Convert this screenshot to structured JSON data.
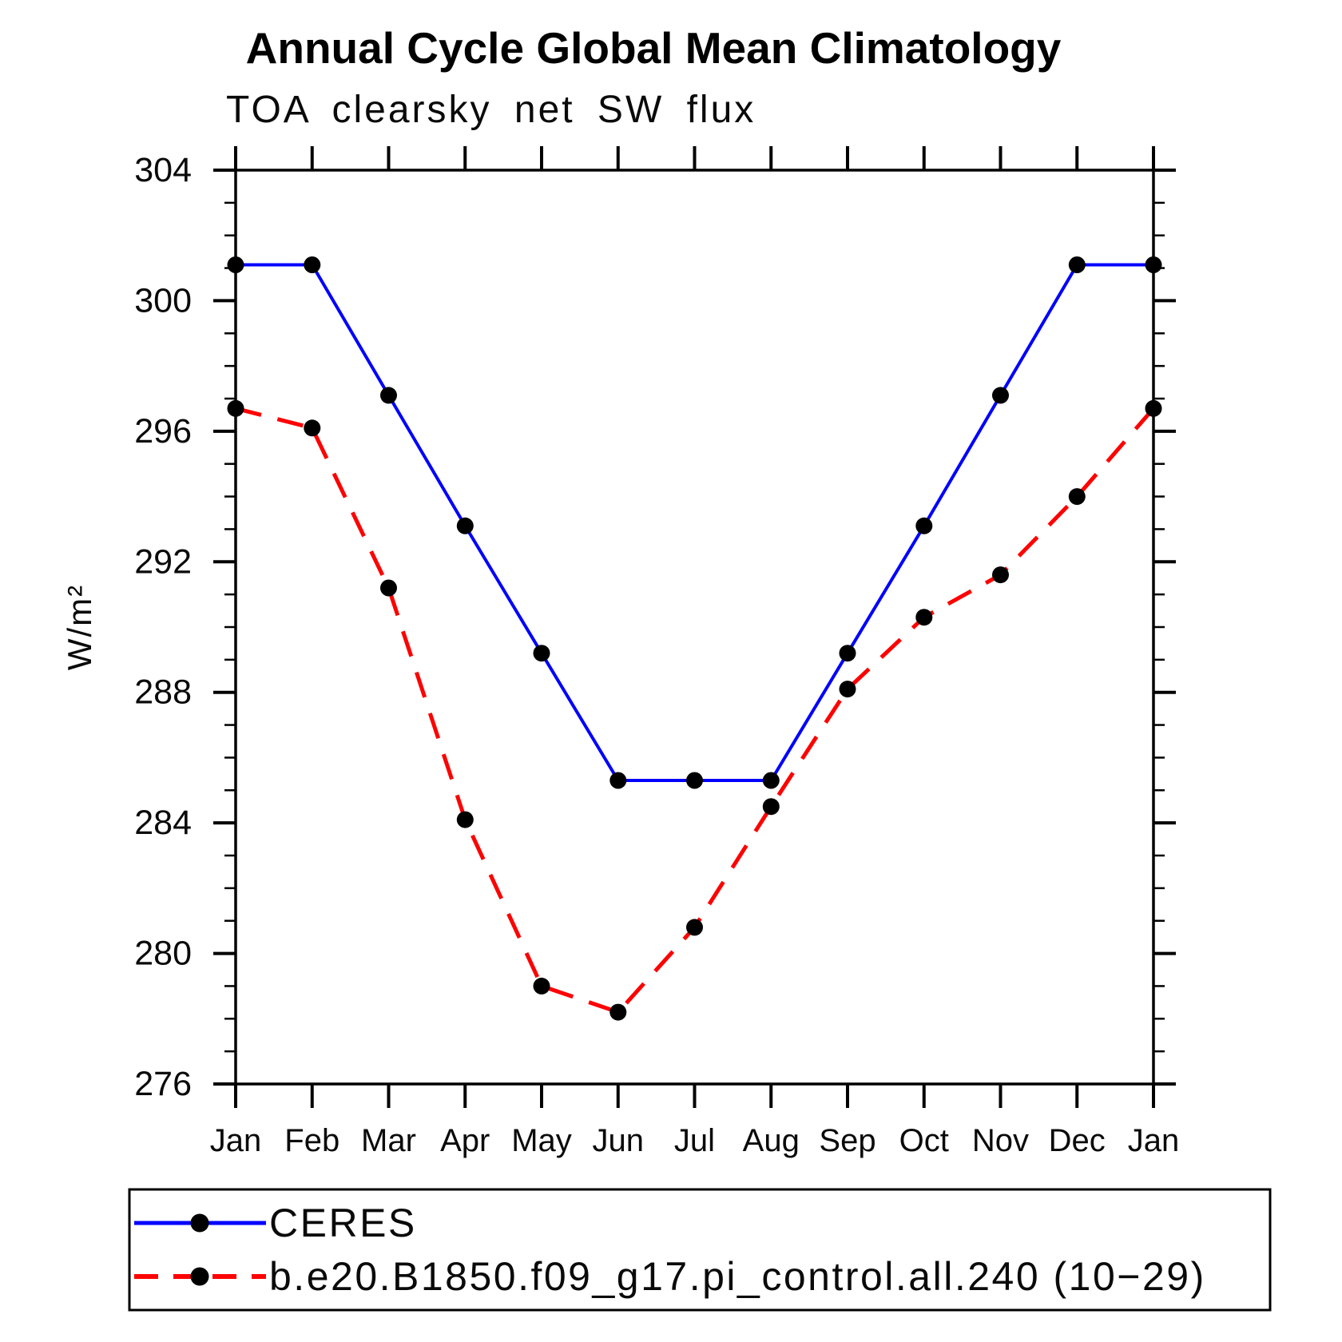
{
  "title": "Annual Cycle Global Mean Climatology",
  "subtitle": "TOA clearsky net SW flux",
  "ylabel": "W/m²",
  "chart_data": {
    "type": "line",
    "categories": [
      "Jan",
      "Feb",
      "Mar",
      "Apr",
      "May",
      "Jun",
      "Jul",
      "Aug",
      "Sep",
      "Oct",
      "Nov",
      "Dec",
      "Jan"
    ],
    "series": [
      {
        "name": "CERES",
        "color": "#0000ff",
        "line_style": "solid",
        "marker": "filled-circle",
        "marker_color": "#000000",
        "values": [
          301.1,
          301.1,
          297.1,
          293.1,
          289.2,
          285.3,
          285.3,
          285.3,
          289.2,
          293.1,
          297.1,
          301.1,
          301.1
        ]
      },
      {
        "name": "b.e20.B1850.f09_g17.pi_control.all.240 (10−29)",
        "color": "#ff0000",
        "line_style": "dashed",
        "marker": "filled-circle",
        "marker_color": "#000000",
        "values": [
          296.7,
          296.1,
          291.2,
          284.1,
          279.0,
          278.2,
          280.8,
          284.5,
          288.1,
          290.3,
          291.6,
          294.0,
          296.7
        ]
      }
    ],
    "xlabel": "",
    "ylabel": "W/m²",
    "ylim": [
      276,
      304
    ],
    "yticks": [
      276,
      280,
      284,
      288,
      292,
      296,
      300,
      304
    ],
    "y_minor_step": 1,
    "x_minor_ticks": false,
    "grid": false,
    "axis_color": "#000000",
    "background": "#ffffff",
    "legend_position": "bottom-left-box"
  }
}
